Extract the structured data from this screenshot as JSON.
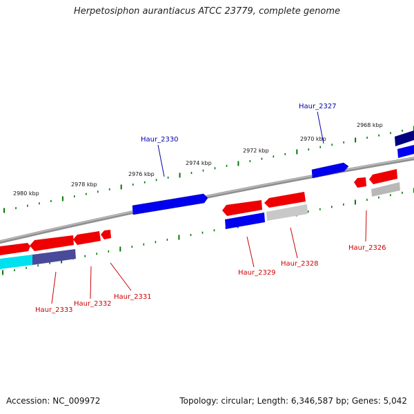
{
  "title": "Herpetosiphon aurantiacus ATCC 23779, complete genome",
  "footer": {
    "accession": "Accession: NC_009972",
    "summary": "Topology: circular; Length: 6,346,587 bp; Genes: 5,042"
  },
  "colors": {
    "forward_gene": "#0000ee",
    "reverse_gene": "#ee0000",
    "forward_label": "#0000aa",
    "reverse_label": "#cc0000",
    "backbone": "#808080",
    "tick": "#007700"
  },
  "scale_labels": [
    "2968 kbp",
    "2970 kbp",
    "2972 kbp",
    "2974 kbp",
    "2976 kbp",
    "2978 kbp",
    "2980 kbp"
  ],
  "gene_labels": {
    "haur_2327": "Haur_2327",
    "haur_2330": "Haur_2330",
    "haur_2326": "Haur_2326",
    "haur_2328": "Haur_2328",
    "haur_2329": "Haur_2329",
    "haur_2331": "Haur_2331",
    "haur_2332": "Haur_2332",
    "haur_2333": "Haur_2333"
  }
}
